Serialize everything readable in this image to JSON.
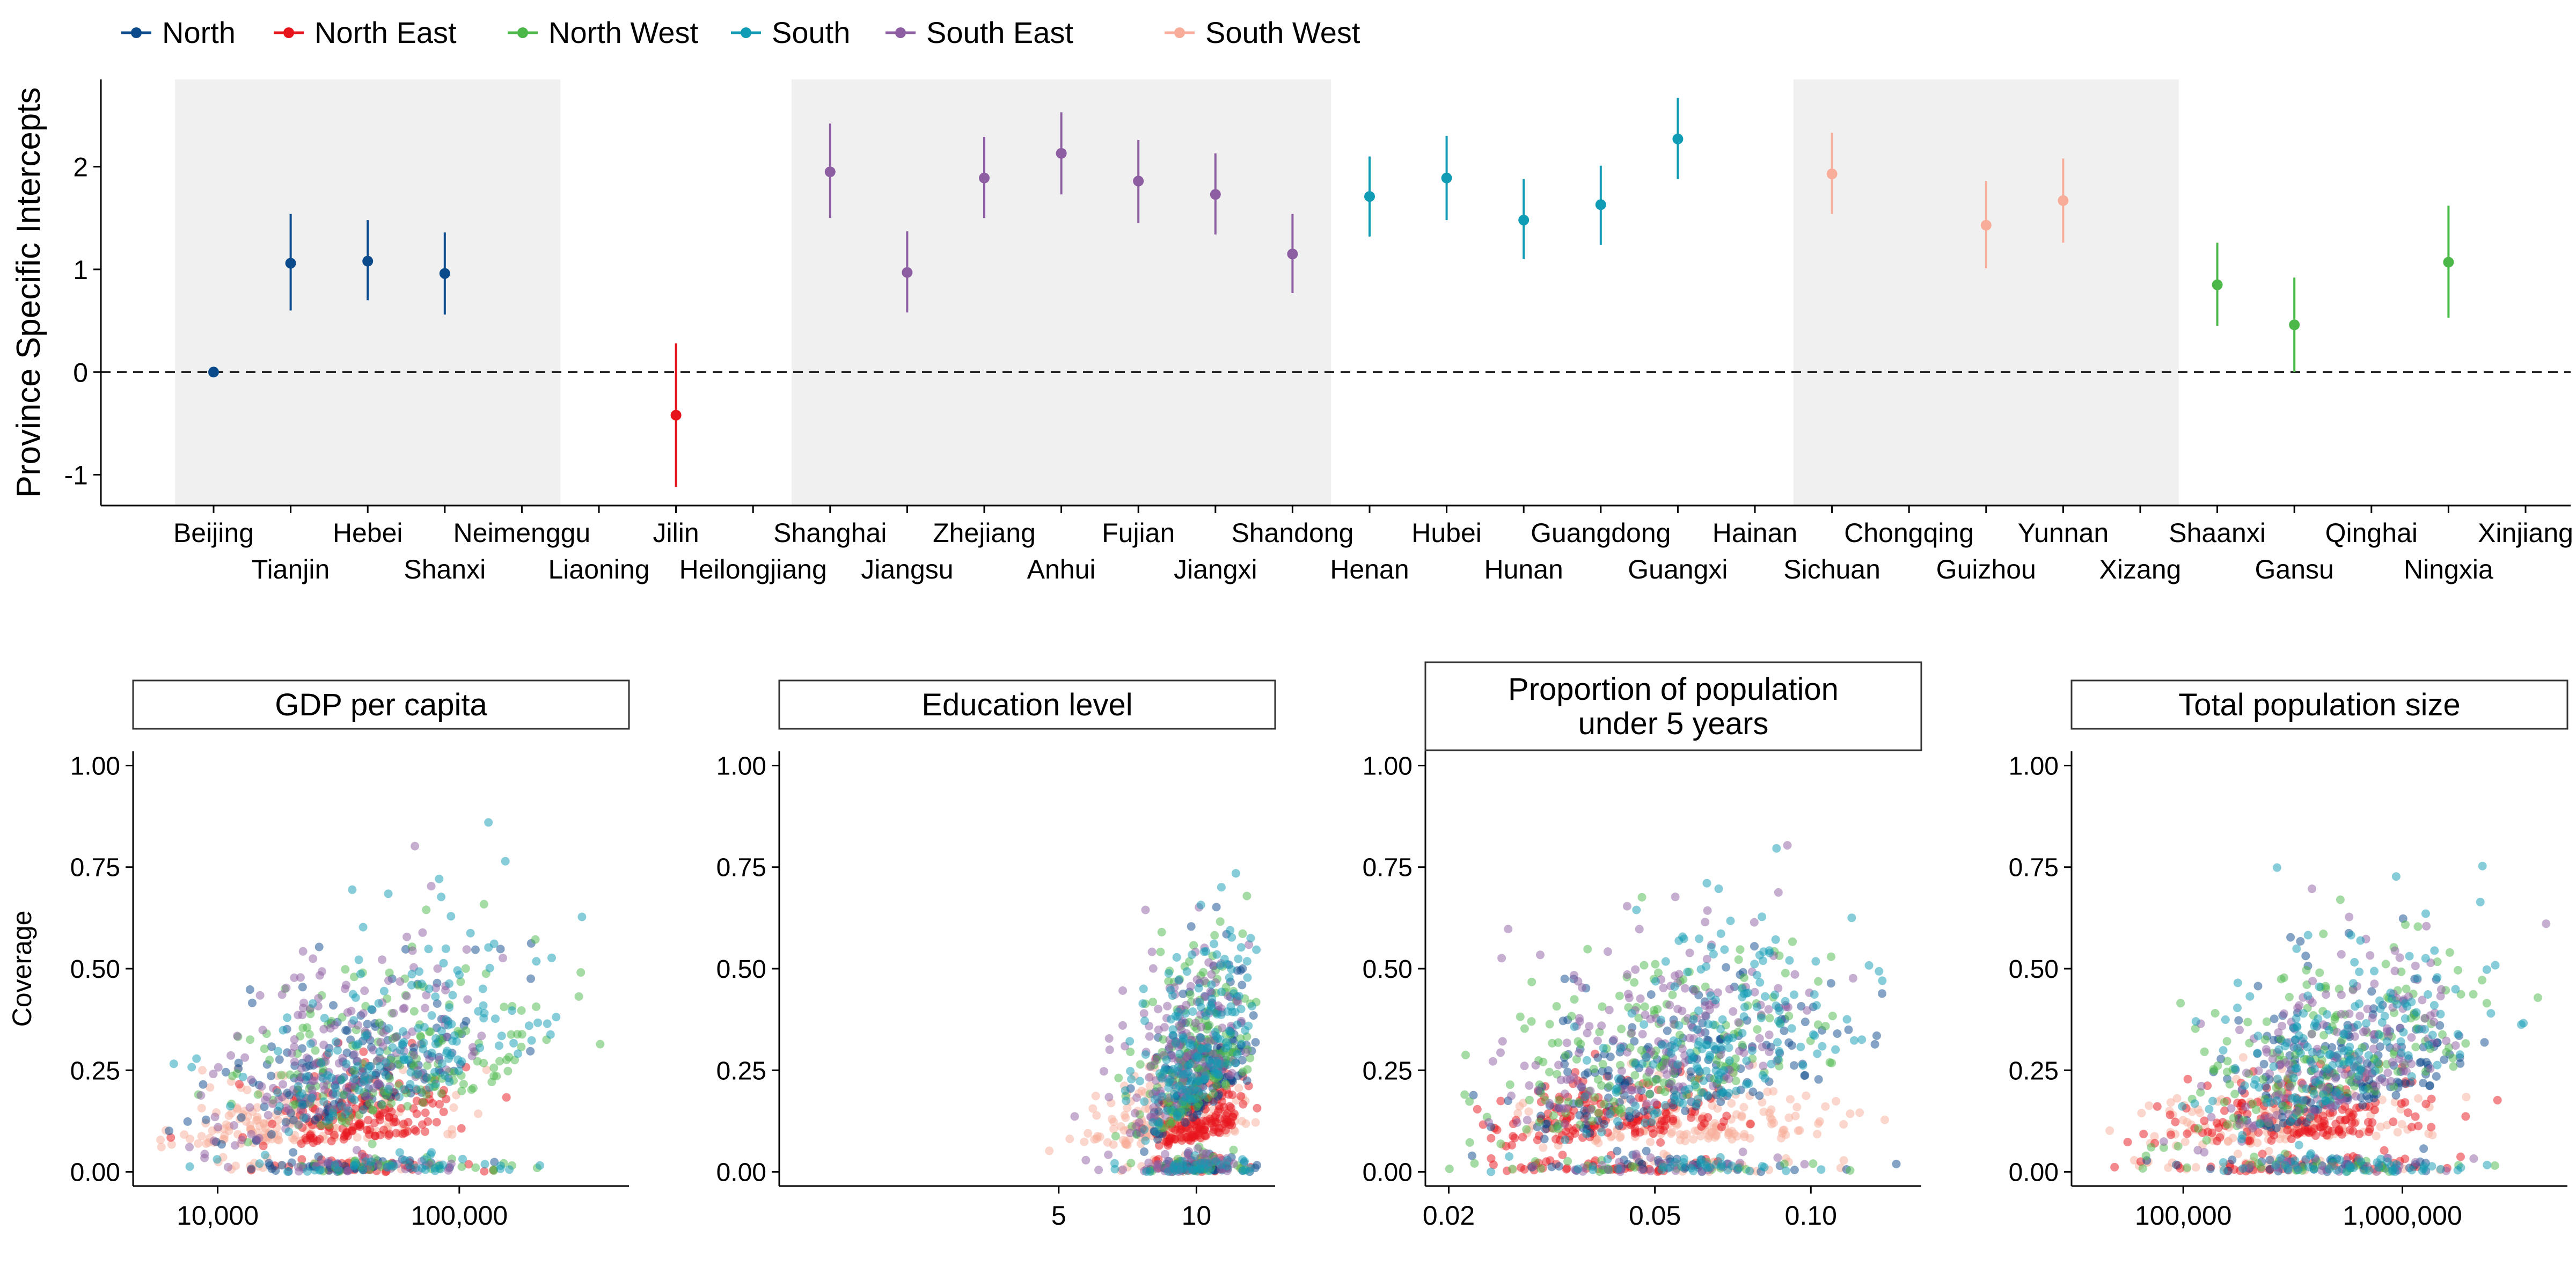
{
  "legend": [
    {
      "name": "North",
      "color": "#0b4a8b"
    },
    {
      "name": "North East",
      "color": "#e8141c"
    },
    {
      "name": "North West",
      "color": "#4bb849"
    },
    {
      "name": "South",
      "color": "#0f9cb4"
    },
    {
      "name": "South East",
      "color": "#8e5ea2"
    },
    {
      "name": "South West",
      "color": "#f7ad99"
    }
  ],
  "chart_data": [
    {
      "type": "scatter",
      "ylabel": "Province Specific Intercepts",
      "ylim": [
        -1.3,
        2.85
      ],
      "yticks": [
        -1,
        0,
        1,
        2
      ],
      "reference_line": 0,
      "shaded_groups": [
        "North",
        "South East",
        "South West"
      ],
      "points": [
        {
          "province": "Beijing",
          "region": "North",
          "est": 0.0,
          "lo": 0.0,
          "hi": 0.0
        },
        {
          "province": "Tianjin",
          "region": "North",
          "est": 1.06,
          "lo": 0.6,
          "hi": 1.54
        },
        {
          "province": "Hebei",
          "region": "North",
          "est": 1.08,
          "lo": 0.7,
          "hi": 1.48
        },
        {
          "province": "Shanxi",
          "region": "North",
          "est": 0.96,
          "lo": 0.56,
          "hi": 1.36
        },
        {
          "province": "Neimenggu",
          "region": "North",
          "est": null,
          "lo": null,
          "hi": null
        },
        {
          "province": "Liaoning",
          "region": "North East",
          "est": null,
          "lo": null,
          "hi": null
        },
        {
          "province": "Jilin",
          "region": "North East",
          "est": -0.42,
          "lo": -1.12,
          "hi": 0.28
        },
        {
          "province": "Heilongjiang",
          "region": "North East",
          "est": null,
          "lo": null,
          "hi": null
        },
        {
          "province": "Shanghai",
          "region": "South East",
          "est": 1.95,
          "lo": 1.5,
          "hi": 2.42
        },
        {
          "province": "Jiangsu",
          "region": "South East",
          "est": 0.97,
          "lo": 0.58,
          "hi": 1.37
        },
        {
          "province": "Zhejiang",
          "region": "South East",
          "est": 1.89,
          "lo": 1.5,
          "hi": 2.29
        },
        {
          "province": "Anhui",
          "region": "South East",
          "est": 2.13,
          "lo": 1.73,
          "hi": 2.53
        },
        {
          "province": "Fujian",
          "region": "South East",
          "est": 1.86,
          "lo": 1.45,
          "hi": 2.26
        },
        {
          "province": "Jiangxi",
          "region": "South East",
          "est": 1.73,
          "lo": 1.34,
          "hi": 2.13
        },
        {
          "province": "Shandong",
          "region": "South East",
          "est": 1.15,
          "lo": 0.77,
          "hi": 1.54
        },
        {
          "province": "Henan",
          "region": "South",
          "est": 1.71,
          "lo": 1.32,
          "hi": 2.1
        },
        {
          "province": "Hubei",
          "region": "South",
          "est": 1.89,
          "lo": 1.48,
          "hi": 2.3
        },
        {
          "province": "Hunan",
          "region": "South",
          "est": 1.48,
          "lo": 1.1,
          "hi": 1.88
        },
        {
          "province": "Guangdong",
          "region": "South",
          "est": 1.63,
          "lo": 1.24,
          "hi": 2.01
        },
        {
          "province": "Guangxi",
          "region": "South",
          "est": 2.27,
          "lo": 1.88,
          "hi": 2.67
        },
        {
          "province": "Hainan",
          "region": "South",
          "est": null,
          "lo": null,
          "hi": null
        },
        {
          "province": "Sichuan",
          "region": "South West",
          "est": 1.93,
          "lo": 1.54,
          "hi": 2.33
        },
        {
          "province": "Chongqing",
          "region": "South West",
          "est": null,
          "lo": null,
          "hi": null
        },
        {
          "province": "Guizhou",
          "region": "South West",
          "est": 1.43,
          "lo": 1.01,
          "hi": 1.86
        },
        {
          "province": "Yunnan",
          "region": "South West",
          "est": 1.67,
          "lo": 1.26,
          "hi": 2.08
        },
        {
          "province": "Xizang",
          "region": "South West",
          "est": null,
          "lo": null,
          "hi": null
        },
        {
          "province": "Shaanxi",
          "region": "North West",
          "est": 0.85,
          "lo": 0.45,
          "hi": 1.26
        },
        {
          "province": "Gansu",
          "region": "North West",
          "est": 0.46,
          "lo": 0.0,
          "hi": 0.92
        },
        {
          "province": "Qinghai",
          "region": "North West",
          "est": null,
          "lo": null,
          "hi": null
        },
        {
          "province": "Ningxia",
          "region": "North West",
          "est": 1.07,
          "lo": 0.53,
          "hi": 1.62
        },
        {
          "province": "Xinjiang",
          "region": "North West",
          "est": null,
          "lo": null,
          "hi": null
        }
      ]
    },
    {
      "type": "scatter",
      "title": "GDP per capita",
      "ylabel": "Coverage",
      "xscale": "log",
      "xlim": [
        5000,
        450000
      ],
      "xticks": [
        10000,
        100000
      ],
      "xtick_labels": [
        "10,000",
        "100,000"
      ],
      "ylim": [
        -0.035,
        1.035
      ],
      "yticks": [
        0,
        0.25,
        0.5,
        0.75,
        1.0
      ],
      "ytick_labels": [
        "0.00",
        "0.25",
        "0.50",
        "0.75",
        "1.00"
      ],
      "point_count": 1200,
      "distribution_params": [
        {
          "center": 35000,
          "spread": 0.25,
          "cov_slope": 0.18
        },
        {
          "center": 40000,
          "spread": 0.22,
          "cov_slope": 0.05
        },
        {
          "center": 60000,
          "spread": 0.35,
          "cov_slope": 0.22
        },
        {
          "center": 55000,
          "spread": 0.32,
          "cov_slope": 0.26
        },
        {
          "center": 38000,
          "spread": 0.28,
          "cov_slope": 0.24
        },
        {
          "center": 20000,
          "spread": 0.28,
          "cov_slope": 0.03
        }
      ]
    },
    {
      "type": "scatter",
      "title": "Education level",
      "xscale": "log",
      "xlim": [
        1.3,
        14
      ],
      "xticks": [
        5,
        10
      ],
      "xtick_labels": [
        "5",
        "10"
      ],
      "ylim": [
        -0.035,
        1.035
      ],
      "yticks": [
        0,
        0.25,
        0.5,
        0.75,
        1.0
      ],
      "ytick_labels": [
        "0.00",
        "0.25",
        "0.50",
        "0.75",
        "1.00"
      ],
      "point_count": 1200,
      "distribution_params": [
        {
          "center": 10.2,
          "spread": 0.06,
          "cov_slope": 0.18
        },
        {
          "center": 10.3,
          "spread": 0.05,
          "cov_slope": 0.05
        },
        {
          "center": 10.0,
          "spread": 0.07,
          "cov_slope": 0.22
        },
        {
          "center": 10.1,
          "spread": 0.07,
          "cov_slope": 0.26
        },
        {
          "center": 9.6,
          "spread": 0.08,
          "cov_slope": 0.24
        },
        {
          "center": 8.8,
          "spread": 0.09,
          "cov_slope": 0.03
        }
      ]
    },
    {
      "type": "scatter",
      "title": [
        "Proportion of population",
        "under 5 years"
      ],
      "xscale": "log",
      "xlim": [
        0.019,
        0.155
      ],
      "xticks": [
        0.02,
        0.05,
        0.1
      ],
      "xtick_labels": [
        "0.02",
        "0.05",
        "0.10"
      ],
      "ylim": [
        -0.035,
        1.035
      ],
      "yticks": [
        0,
        0.25,
        0.5,
        0.75,
        1.0
      ],
      "ytick_labels": [
        "0.00",
        "0.25",
        "0.50",
        "0.75",
        "1.00"
      ],
      "point_count": 1200,
      "distribution_params": [
        {
          "center": 0.055,
          "spread": 0.16,
          "cov_slope": 0.18
        },
        {
          "center": 0.04,
          "spread": 0.12,
          "cov_slope": 0.05
        },
        {
          "center": 0.05,
          "spread": 0.18,
          "cov_slope": 0.22
        },
        {
          "center": 0.065,
          "spread": 0.14,
          "cov_slope": 0.26
        },
        {
          "center": 0.05,
          "spread": 0.16,
          "cov_slope": 0.24
        },
        {
          "center": 0.06,
          "spread": 0.14,
          "cov_slope": 0.03
        }
      ]
    },
    {
      "type": "scatter",
      "title": "Total population size",
      "xscale": "log",
      "xlim": [
        35000,
        5000000
      ],
      "xticks": [
        100000,
        1000000
      ],
      "xtick_labels": [
        "100,000",
        "1,000,000"
      ],
      "ylim": [
        -0.035,
        1.035
      ],
      "yticks": [
        0,
        0.25,
        0.5,
        0.75,
        1.0
      ],
      "ytick_labels": [
        "0.00",
        "0.25",
        "0.50",
        "0.75",
        "1.00"
      ],
      "point_count": 1200,
      "distribution_params": [
        {
          "center": 500000,
          "spread": 0.3,
          "cov_slope": 0.18
        },
        {
          "center": 350000,
          "spread": 0.3,
          "cov_slope": 0.05
        },
        {
          "center": 450000,
          "spread": 0.35,
          "cov_slope": 0.22
        },
        {
          "center": 600000,
          "spread": 0.3,
          "cov_slope": 0.26
        },
        {
          "center": 550000,
          "spread": 0.3,
          "cov_slope": 0.24
        },
        {
          "center": 300000,
          "spread": 0.35,
          "cov_slope": 0.03
        }
      ]
    }
  ]
}
